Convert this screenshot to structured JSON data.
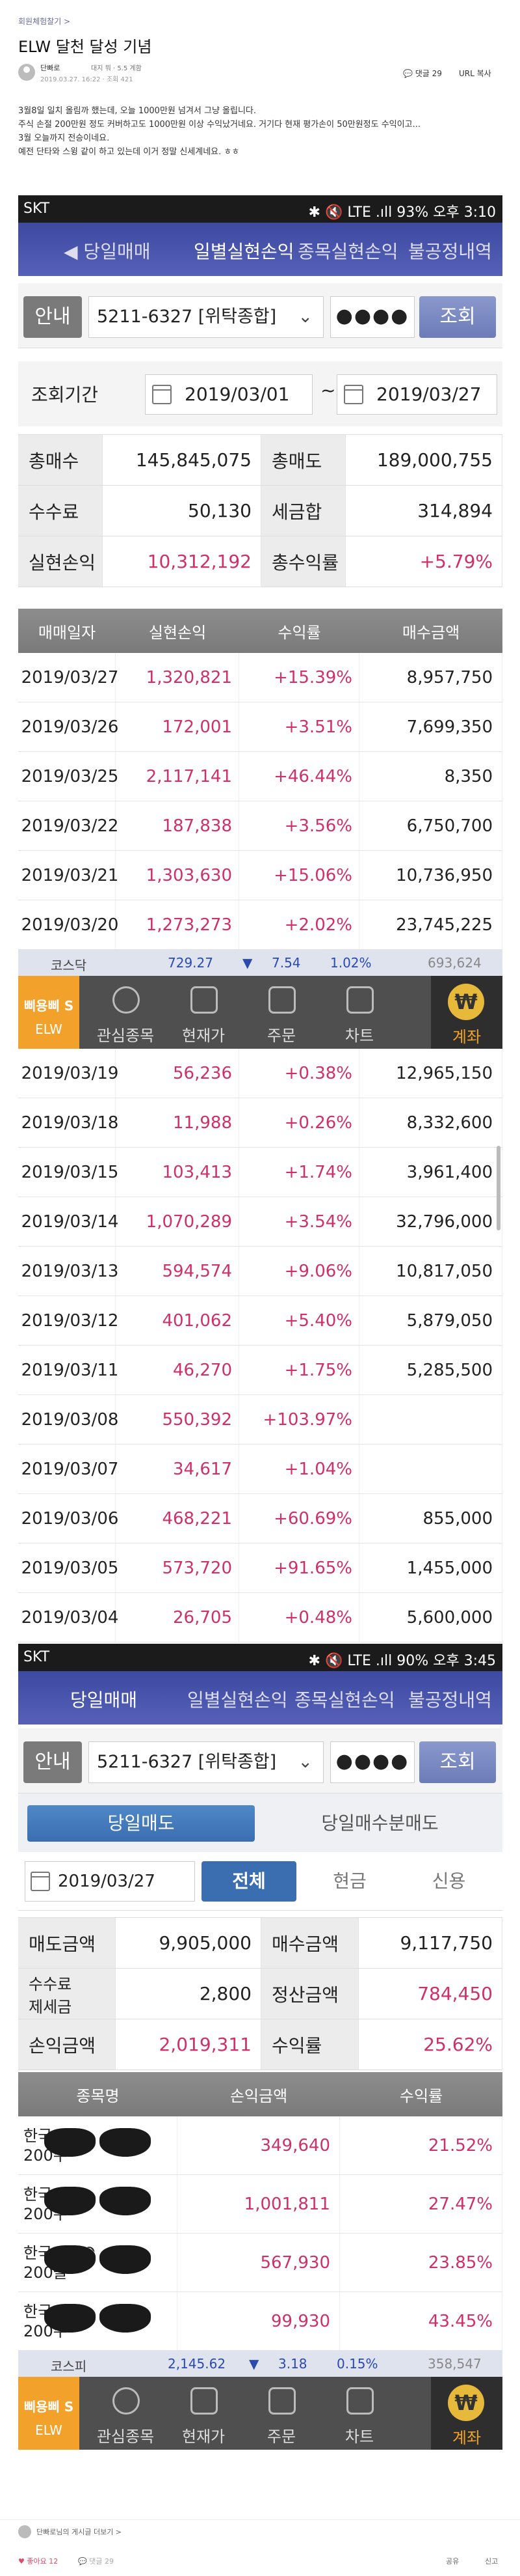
{
  "post": {
    "board": "회원체험찰기 >",
    "title": "ELW 달천 달성 기념",
    "author": "단빠로",
    "author_badge": "대지 뭐 · 5.5 계함",
    "date": "2019.03.27. 16:22 · 조회 421",
    "comments": "댓글 29",
    "url_label": "URL 복사",
    "body": [
      "3월8일 일치 올림까 했는데, 오늘 1000만원 넘겨서 그냥 올립니다.",
      "주식 손절 200만원 정도 커버하고도 1000만원 이상 수익났거네요. 거기다 현재 평가손이 50만원정도 수익이고...",
      "3월 오늘까지 전승이네요.",
      "예전 단타와 스윙 같이 하고 있는데 이거 정말 신세계네요. ㅎㅎ"
    ]
  },
  "screen1": {
    "status": {
      "carrier": "SKT",
      "battery_time": "93% 오후 3:10",
      "icons": "✱ 🔇 LTE .ıll"
    },
    "tabs": [
      "◀ 당일매매",
      "일별실현손익",
      "종목실현손익",
      "불공정내역"
    ],
    "account": {
      "guide": "안내",
      "number": "5211-6327 [위탁종합]",
      "password": "●●●●",
      "search": "조회"
    },
    "period": {
      "label": "조회기간",
      "from": "2019/03/01",
      "to": "2019/03/27",
      "sep": "~"
    },
    "summary": [
      {
        "l1": "총매수",
        "v1": "145,845,075",
        "l2": "총매도",
        "v2": "189,000,755"
      },
      {
        "l1": "수수료",
        "v1": "50,130",
        "l2": "세금합",
        "v2": "314,894"
      },
      {
        "l1": "실현손익",
        "v1": "10,312,192",
        "l2": "총수익률",
        "v2": "+5.79%"
      }
    ],
    "headers": [
      "매매일자",
      "실현손익",
      "수익률",
      "매수금액"
    ],
    "rows": [
      [
        "2019/03/27",
        "1,320,821",
        "+15.39%",
        "8,957,750"
      ],
      [
        "2019/03/26",
        "172,001",
        "+3.51%",
        "7,699,350"
      ],
      [
        "2019/03/25",
        "2,117,141",
        "+46.44%",
        "8,350"
      ],
      [
        "2019/03/22",
        "187,838",
        "+3.56%",
        "6,750,700"
      ],
      [
        "2019/03/21",
        "1,303,630",
        "+15.06%",
        "10,736,950"
      ],
      [
        "2019/03/20",
        "1,273,273",
        "+2.02%",
        "23,745,225"
      ]
    ],
    "ticker": {
      "name": "코스닥",
      "value": "729.27",
      "arrow": "▼",
      "change": "7.54",
      "pct": "1.02%",
      "volume": "693,624"
    },
    "bottom": {
      "logo1": "삐용삐 S",
      "logo2": "ELW",
      "items": [
        "관심종목",
        "현재가",
        "주문",
        "차트"
      ],
      "account": "계좌",
      "coin": "₩"
    },
    "rows2": [
      [
        "2019/03/19",
        "56,236",
        "+0.38%",
        "12,965,150"
      ],
      [
        "2019/03/18",
        "11,988",
        "+0.26%",
        "8,332,600"
      ],
      [
        "2019/03/15",
        "103,413",
        "+1.74%",
        "3,961,400"
      ],
      [
        "2019/03/14",
        "1,070,289",
        "+3.54%",
        "32,796,000"
      ],
      [
        "2019/03/13",
        "594,574",
        "+9.06%",
        "10,817,050"
      ],
      [
        "2019/03/12",
        "401,062",
        "+5.40%",
        "5,879,050"
      ],
      [
        "2019/03/11",
        "46,270",
        "+1.75%",
        "5,285,500"
      ],
      [
        "2019/03/08",
        "550,392",
        "+103.97%",
        ""
      ],
      [
        "2019/03/07",
        "34,617",
        "+1.04%",
        ""
      ],
      [
        "2019/03/06",
        "468,221",
        "+60.69%",
        "855,000"
      ],
      [
        "2019/03/05",
        "573,720",
        "+91.65%",
        "1,455,000"
      ],
      [
        "2019/03/04",
        "26,705",
        "+0.48%",
        "5,600,000"
      ]
    ]
  },
  "screen2": {
    "status": {
      "carrier": "SKT",
      "battery_time": "90% 오후 3:45",
      "icons": "✱ 🔇 LTE .ıll"
    },
    "tabs": [
      "당일매매",
      "일별실현손익",
      "종목실현손익",
      "불공정내역"
    ],
    "account": {
      "guide": "안내",
      "number": "5211-6327 [위탁종합]",
      "password": "●●●●",
      "search": "조회"
    },
    "subtabs": [
      "당일매도",
      "당일매수분매도"
    ],
    "date": "2019/03/27",
    "segments": [
      "전체",
      "현금",
      "신용"
    ],
    "summary": [
      {
        "l1": "매도금액",
        "v1": "9,905,000",
        "l2": "매수금액",
        "v2": "9,117,750"
      },
      {
        "l1": "수수료\n제세금",
        "v1": "2,800",
        "l2": "정산금액",
        "v2": "784,450"
      },
      {
        "l1": "손익금액",
        "v1": "2,019,311",
        "l2": "수익률",
        "v2": "25.62%"
      }
    ],
    "headers": [
      "종목명",
      "손익금액",
      "수익률"
    ],
    "rows": [
      {
        "name": "한국",
        "qty": "200주",
        "pnl": "349,640",
        "rate": "21.52%"
      },
      {
        "name": "한국",
        "qty": "200주",
        "pnl": "1,001,811",
        "rate": "27.47%"
      },
      {
        "name": "한국KOKO",
        "qty": "200콜",
        "pnl": "567,930",
        "rate": "23.85%"
      },
      {
        "name": "한국",
        "qty": "200주",
        "pnl": "99,930",
        "rate": "43.45%"
      }
    ],
    "ticker": {
      "name": "코스피",
      "value": "2,145.62",
      "arrow": "▼",
      "change": "3.18",
      "pct": "0.15%",
      "volume": "358,547"
    }
  },
  "footer": {
    "author_line": "단빠로님의 게시글 더보기 >",
    "likes": "좋아요 12",
    "comments": "댓글 29",
    "share": "공유",
    "report": "신고"
  },
  "colors": {
    "tab_bg": "#4a55ad",
    "profit": "#d0306a",
    "accent": "#f2a12a"
  }
}
